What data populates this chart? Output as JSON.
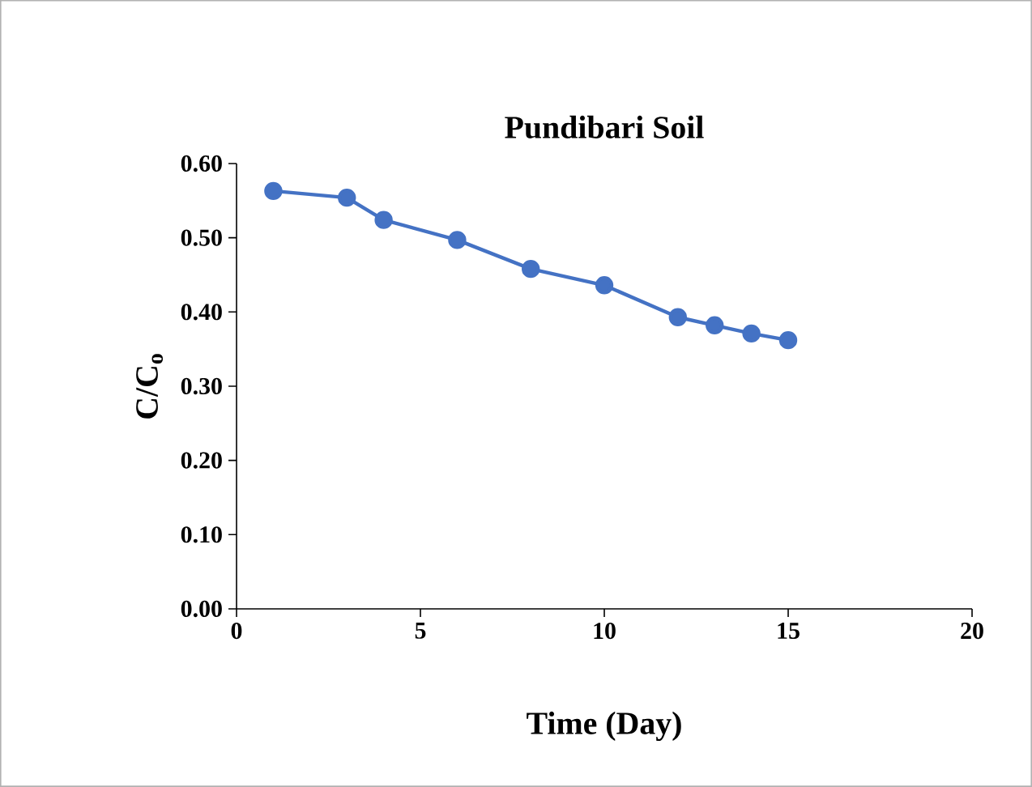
{
  "chart_data": {
    "type": "line",
    "title": "Pundibari Soil",
    "xlabel": "Time (Day)",
    "ylabel": "C/C$_{o}$",
    "x": [
      1,
      3,
      4,
      6,
      8,
      10,
      12,
      13,
      14,
      15
    ],
    "series": [
      {
        "color": "#4472c4",
        "values": [
          0.563,
          0.554,
          0.524,
          0.497,
          0.458,
          0.436,
          0.393,
          0.382,
          0.371,
          0.362
        ]
      }
    ],
    "xlim": [
      0,
      20
    ],
    "xticks": [
      0,
      5,
      10,
      15,
      20
    ],
    "ylim": [
      0,
      0.6
    ],
    "yticks": [
      {
        "value": 0,
        "label": "0.00"
      },
      {
        "value": 0.1,
        "label": "0.10"
      },
      {
        "value": 0.2,
        "label": "0.20"
      },
      {
        "value": 0.3,
        "label": "0.30"
      },
      {
        "value": 0.4,
        "label": "0.40"
      },
      {
        "value": 0.5,
        "label": "0.50"
      },
      {
        "value": 0.6,
        "label": "0.60"
      }
    ],
    "grid": false,
    "marker": "circle",
    "line_style": "solid"
  }
}
